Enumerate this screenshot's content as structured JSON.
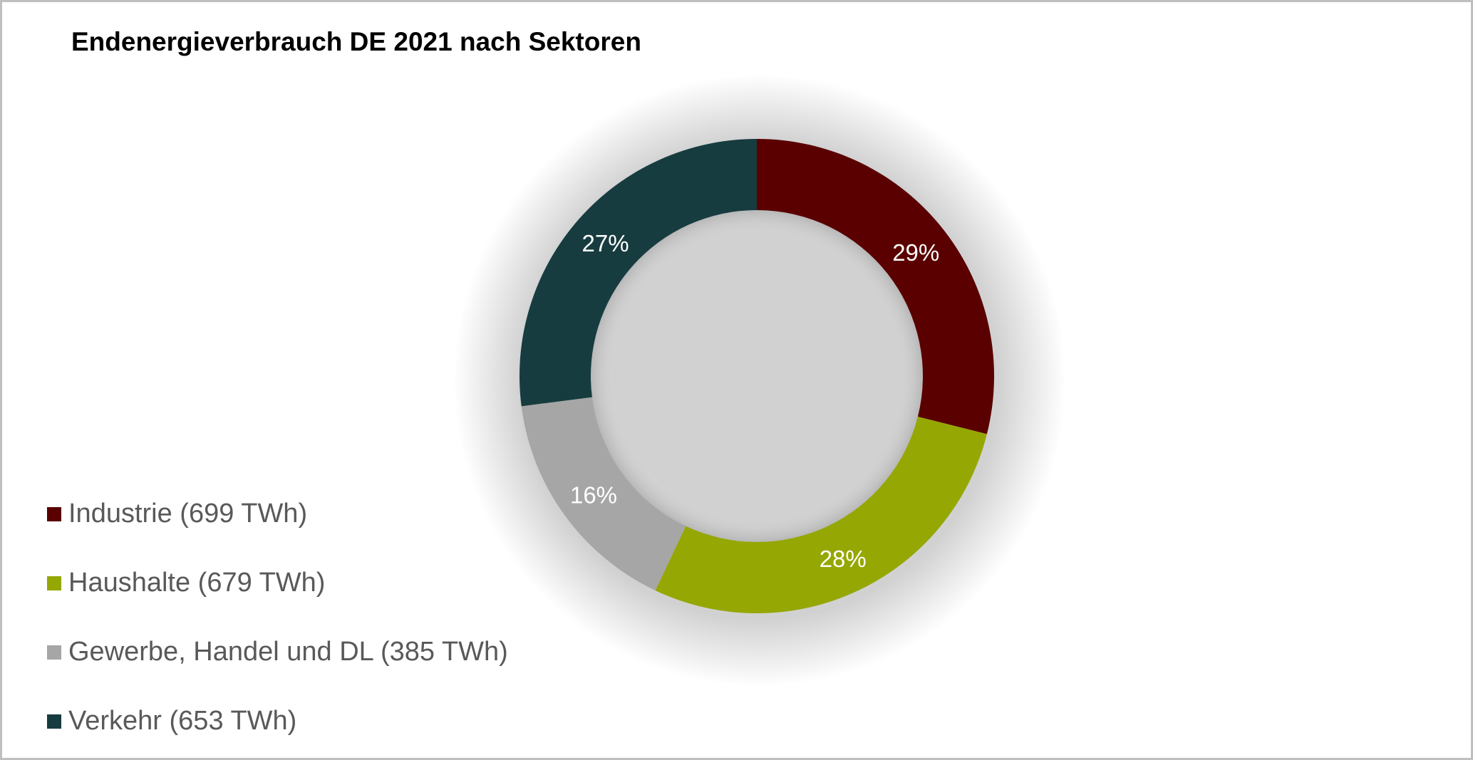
{
  "title": "Endenergieverbrauch DE 2021 nach Sektoren",
  "legend": [
    {
      "label": "Industrie (699 TWh)",
      "color": "#5a0000"
    },
    {
      "label": "Haushalte (679 TWh)",
      "color": "#95a703"
    },
    {
      "label": "Gewerbe, Handel und DL (385 TWh)",
      "color": "#a6a6a6"
    },
    {
      "label": "Verkehr (653 TWh)",
      "color": "#173c3f"
    }
  ],
  "chart_data": {
    "type": "pie",
    "subtype": "donut",
    "title": "Endenergieverbrauch DE 2021 nach Sektoren",
    "categories": [
      "Industrie",
      "Haushalte",
      "Gewerbe, Handel und DL",
      "Verkehr"
    ],
    "values": [
      699,
      679,
      385,
      653
    ],
    "unit": "TWh",
    "data_labels": [
      "29%",
      "28%",
      "16%",
      "27%"
    ],
    "colors": [
      "#5a0000",
      "#95a703",
      "#a6a6a6",
      "#173c3f"
    ],
    "legend_position": "left-bottom",
    "legend_entries": [
      "Industrie (699 TWh)",
      "Haushalte (679 TWh)",
      "Gewerbe, Handel und DL (385 TWh)",
      "Verkehr (653 TWh)"
    ]
  }
}
